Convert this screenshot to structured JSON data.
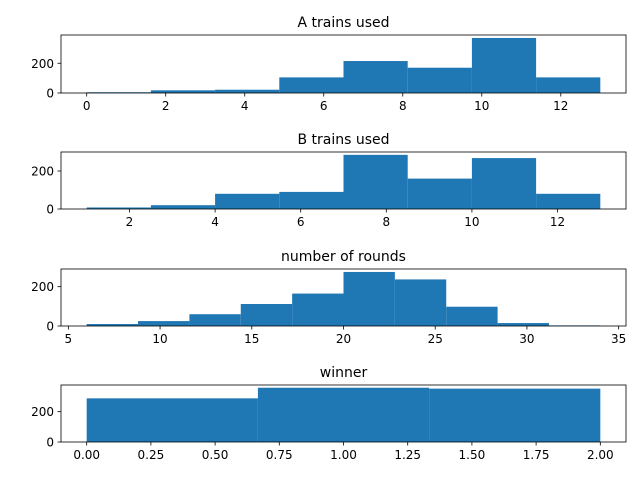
{
  "colors": {
    "bar": "#1f77b4",
    "axis": "#000000",
    "background": "#ffffff"
  },
  "chart_data": [
    {
      "type": "bar",
      "title": "A trains used",
      "xlabel": "",
      "ylabel": "",
      "bin_edges": [
        0,
        1.625,
        3.25,
        4.875,
        6.5,
        8.125,
        9.75,
        11.375,
        13
      ],
      "values": [
        5,
        18,
        22,
        105,
        215,
        170,
        370,
        105
      ],
      "xlim": [
        -0.65,
        13.65
      ],
      "ylim": [
        0,
        390
      ],
      "xticks": [
        0,
        2,
        4,
        6,
        8,
        10,
        12
      ],
      "yticks": [
        0,
        200
      ],
      "grid": false
    },
    {
      "type": "bar",
      "title": "B trains used",
      "xlabel": "",
      "ylabel": "",
      "bin_edges": [
        1,
        2.5,
        4,
        5.5,
        7,
        8.5,
        10,
        11.5,
        13
      ],
      "values": [
        8,
        20,
        80,
        90,
        285,
        160,
        268,
        80
      ],
      "xlim": [
        0.4,
        13.6
      ],
      "ylim": [
        0,
        300
      ],
      "xticks": [
        2,
        4,
        6,
        8,
        10,
        12
      ],
      "yticks": [
        0,
        200
      ],
      "grid": false
    },
    {
      "type": "bar",
      "title": "number of rounds",
      "xlabel": "",
      "ylabel": "",
      "bin_edges": [
        6,
        8.8,
        11.6,
        14.4,
        17.2,
        20,
        22.8,
        25.6,
        28.4,
        31.2,
        34
      ],
      "values": [
        10,
        25,
        60,
        112,
        165,
        275,
        237,
        98,
        15,
        3
      ],
      "xlim": [
        4.6,
        35.4
      ],
      "ylim": [
        0,
        290
      ],
      "xticks": [
        5,
        10,
        15,
        20,
        25,
        30,
        35
      ],
      "yticks": [
        0,
        200
      ],
      "grid": false
    },
    {
      "type": "bar",
      "title": "winner",
      "xlabel": "",
      "ylabel": "",
      "bin_edges": [
        0,
        0.6667,
        1.3333,
        2
      ],
      "values": [
        288,
        358,
        352
      ],
      "xlim": [
        -0.1,
        2.1
      ],
      "ylim": [
        0,
        376
      ],
      "xticks": [
        0.0,
        0.25,
        0.5,
        0.75,
        1.0,
        1.25,
        1.5,
        1.75,
        2.0
      ],
      "xtick_labels": [
        "0.00",
        "0.25",
        "0.50",
        "0.75",
        "1.00",
        "1.25",
        "1.50",
        "1.75",
        "2.00"
      ],
      "yticks": [
        0,
        200
      ],
      "grid": false
    }
  ]
}
